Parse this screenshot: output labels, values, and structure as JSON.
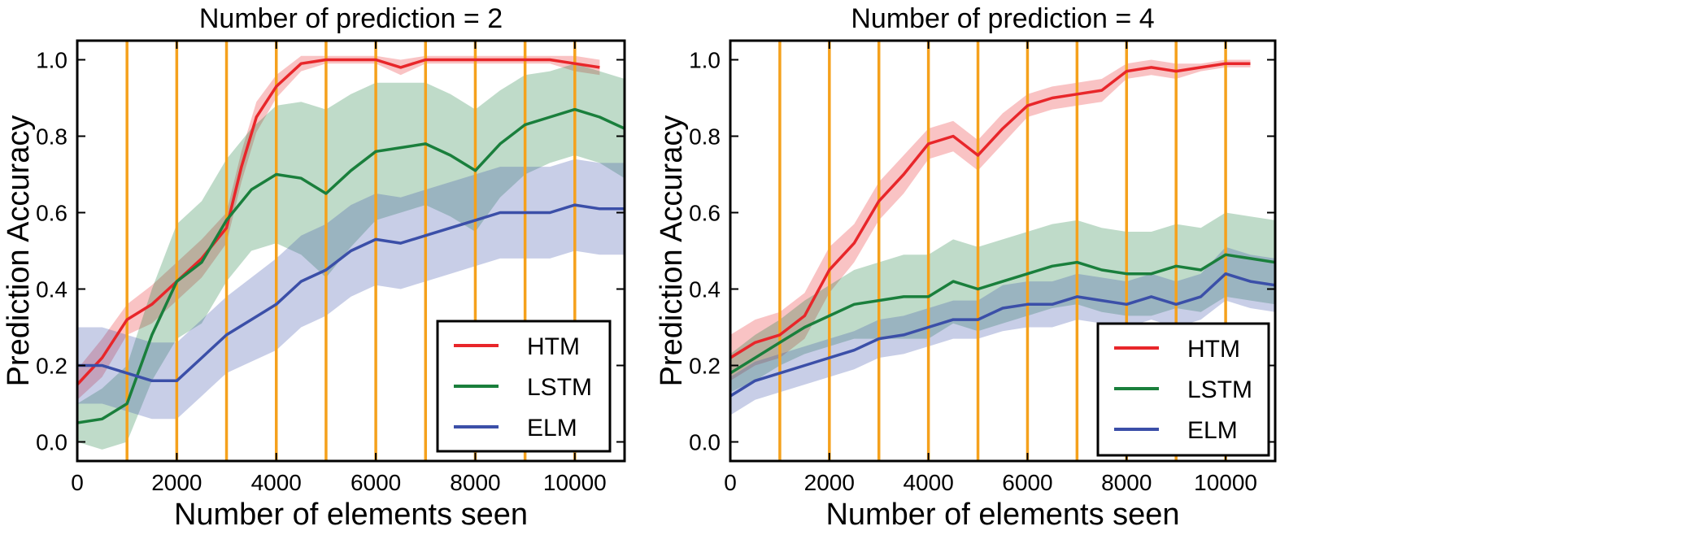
{
  "chart_data": [
    {
      "type": "line",
      "title": "Number of prediction = 2",
      "xlabel": "Number of elements seen",
      "ylabel": "Prediction Accuracy",
      "xlim": [
        0,
        11000
      ],
      "ylim": [
        -0.05,
        1.05
      ],
      "xticks": [
        "0",
        "2000",
        "4000",
        "6000",
        "8000",
        "10000"
      ],
      "yticks": [
        "0.0",
        "0.2",
        "0.4",
        "0.6",
        "0.8",
        "1.0"
      ],
      "vlines": [
        1000,
        2000,
        3000,
        4000,
        5000,
        6000,
        7000,
        8000,
        9000,
        10000
      ],
      "legend_position": "lower right",
      "series": [
        {
          "name": "HTM",
          "color": "#e8262a",
          "x": [
            0,
            500,
            1000,
            1500,
            2000,
            2500,
            3000,
            3300,
            3600,
            4000,
            4500,
            5000,
            5500,
            6000,
            6500,
            7000,
            7500,
            8000,
            8500,
            9000,
            9500,
            10000,
            10500
          ],
          "y": [
            0.15,
            0.22,
            0.32,
            0.36,
            0.42,
            0.48,
            0.56,
            0.72,
            0.85,
            0.93,
            0.99,
            1.0,
            1.0,
            1.0,
            0.98,
            1.0,
            1.0,
            1.0,
            1.0,
            1.0,
            1.0,
            0.99,
            0.98
          ],
          "band": [
            0.04,
            0.05,
            0.04,
            0.05,
            0.05,
            0.05,
            0.04,
            0.04,
            0.04,
            0.03,
            0.02,
            0.01,
            0.01,
            0.01,
            0.02,
            0.01,
            0.01,
            0.01,
            0.01,
            0.01,
            0.01,
            0.02,
            0.02
          ]
        },
        {
          "name": "LSTM",
          "color": "#1a7f3c",
          "x": [
            0,
            500,
            1000,
            1500,
            2000,
            2500,
            3000,
            3500,
            4000,
            4500,
            5000,
            5500,
            6000,
            6500,
            7000,
            7500,
            8000,
            8500,
            9000,
            9500,
            10000,
            10500,
            11000
          ],
          "y": [
            0.05,
            0.06,
            0.1,
            0.28,
            0.42,
            0.47,
            0.58,
            0.66,
            0.7,
            0.69,
            0.65,
            0.71,
            0.76,
            0.77,
            0.78,
            0.75,
            0.71,
            0.78,
            0.83,
            0.85,
            0.87,
            0.85,
            0.82
          ],
          "band": [
            0.05,
            0.08,
            0.1,
            0.12,
            0.15,
            0.16,
            0.16,
            0.16,
            0.18,
            0.2,
            0.22,
            0.2,
            0.18,
            0.17,
            0.16,
            0.16,
            0.16,
            0.14,
            0.13,
            0.12,
            0.12,
            0.12,
            0.13
          ]
        },
        {
          "name": "ELM",
          "color": "#3b4fa8",
          "x": [
            0,
            500,
            1000,
            1500,
            2000,
            2500,
            3000,
            3500,
            4000,
            4500,
            5000,
            5500,
            6000,
            6500,
            7000,
            7500,
            8000,
            8500,
            9000,
            9500,
            10000,
            10500,
            11000
          ],
          "y": [
            0.2,
            0.2,
            0.18,
            0.16,
            0.16,
            0.22,
            0.28,
            0.32,
            0.36,
            0.42,
            0.45,
            0.5,
            0.53,
            0.52,
            0.54,
            0.56,
            0.58,
            0.6,
            0.6,
            0.6,
            0.62,
            0.61,
            0.61
          ],
          "band": [
            0.1,
            0.1,
            0.1,
            0.1,
            0.1,
            0.1,
            0.1,
            0.11,
            0.12,
            0.12,
            0.12,
            0.12,
            0.12,
            0.12,
            0.12,
            0.12,
            0.12,
            0.12,
            0.12,
            0.12,
            0.12,
            0.12,
            0.12
          ]
        }
      ]
    },
    {
      "type": "line",
      "title": "Number of prediction = 4",
      "xlabel": "Number of elements seen",
      "ylabel": "Prediction Accuracy",
      "xlim": [
        0,
        11000
      ],
      "ylim": [
        -0.05,
        1.05
      ],
      "xticks": [
        "0",
        "2000",
        "4000",
        "6000",
        "8000",
        "10000"
      ],
      "yticks": [
        "0.0",
        "0.2",
        "0.4",
        "0.6",
        "0.8",
        "1.0"
      ],
      "vlines": [
        1000,
        2000,
        3000,
        4000,
        5000,
        6000,
        7000,
        8000,
        9000,
        10000
      ],
      "legend_position": "lower right",
      "series": [
        {
          "name": "HTM",
          "color": "#e8262a",
          "x": [
            0,
            500,
            1000,
            1500,
            2000,
            2500,
            3000,
            3500,
            4000,
            4500,
            5000,
            5500,
            6000,
            6500,
            7000,
            7500,
            8000,
            8500,
            9000,
            9500,
            10000,
            10500
          ],
          "y": [
            0.22,
            0.26,
            0.28,
            0.33,
            0.45,
            0.52,
            0.63,
            0.7,
            0.78,
            0.8,
            0.75,
            0.82,
            0.88,
            0.9,
            0.91,
            0.92,
            0.97,
            0.98,
            0.97,
            0.98,
            0.99,
            0.99
          ],
          "band": [
            0.06,
            0.06,
            0.06,
            0.06,
            0.06,
            0.05,
            0.05,
            0.05,
            0.04,
            0.04,
            0.04,
            0.04,
            0.03,
            0.03,
            0.03,
            0.03,
            0.02,
            0.02,
            0.02,
            0.01,
            0.01,
            0.01
          ]
        },
        {
          "name": "LSTM",
          "color": "#1a7f3c",
          "x": [
            0,
            500,
            1000,
            1500,
            2000,
            2500,
            3000,
            3500,
            4000,
            4500,
            5000,
            5500,
            6000,
            6500,
            7000,
            7500,
            8000,
            8500,
            9000,
            9500,
            10000,
            10500,
            11000
          ],
          "y": [
            0.18,
            0.22,
            0.26,
            0.3,
            0.33,
            0.36,
            0.37,
            0.38,
            0.38,
            0.42,
            0.4,
            0.42,
            0.44,
            0.46,
            0.47,
            0.45,
            0.44,
            0.44,
            0.46,
            0.45,
            0.49,
            0.48,
            0.47
          ],
          "band": [
            0.05,
            0.06,
            0.06,
            0.07,
            0.08,
            0.09,
            0.1,
            0.11,
            0.11,
            0.11,
            0.11,
            0.11,
            0.11,
            0.11,
            0.11,
            0.11,
            0.11,
            0.11,
            0.11,
            0.11,
            0.11,
            0.11,
            0.11
          ]
        },
        {
          "name": "ELM",
          "color": "#3b4fa8",
          "x": [
            0,
            500,
            1000,
            1500,
            2000,
            2500,
            3000,
            3500,
            4000,
            4500,
            5000,
            5500,
            6000,
            6500,
            7000,
            7500,
            8000,
            8500,
            9000,
            9500,
            10000,
            10500,
            11000
          ],
          "y": [
            0.12,
            0.16,
            0.18,
            0.2,
            0.22,
            0.24,
            0.27,
            0.28,
            0.3,
            0.32,
            0.32,
            0.35,
            0.36,
            0.36,
            0.38,
            0.37,
            0.36,
            0.38,
            0.36,
            0.38,
            0.44,
            0.42,
            0.41
          ],
          "band": [
            0.05,
            0.05,
            0.05,
            0.05,
            0.05,
            0.05,
            0.05,
            0.05,
            0.05,
            0.05,
            0.05,
            0.06,
            0.06,
            0.06,
            0.06,
            0.06,
            0.06,
            0.06,
            0.06,
            0.06,
            0.07,
            0.07,
            0.07
          ]
        }
      ]
    }
  ],
  "colors": {
    "vline": "#f5a11c",
    "axis": "#000000",
    "background": "#ffffff"
  }
}
